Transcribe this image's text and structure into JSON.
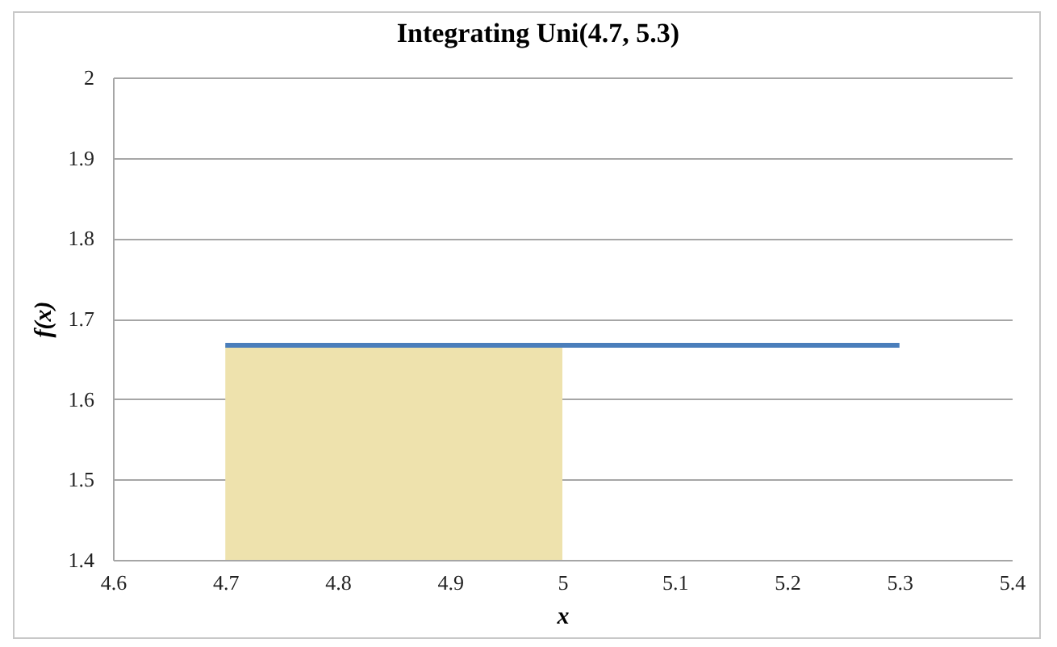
{
  "chart_data": {
    "type": "line",
    "title": "Integrating Uni(4.7, 5.3)",
    "xlabel": "x",
    "ylabel": "f(x)",
    "series": [
      {
        "type": "area",
        "color": "#eee2ad",
        "x": [
          4.7,
          5
        ],
        "values": [
          1.667,
          1.667
        ]
      },
      {
        "type": "line",
        "color": "#4a7ebb",
        "x": [
          4.7,
          5.3
        ],
        "values": [
          1.667,
          1.667
        ]
      }
    ],
    "xlim": [
      4.6,
      5.4
    ],
    "xticks": [
      4.6,
      4.7,
      4.8,
      4.9,
      5,
      5.1,
      5.2,
      5.3,
      5.4
    ],
    "ylim": [
      1.4,
      2
    ],
    "yticks": [
      1.4,
      1.5,
      1.6,
      1.7,
      1.8,
      1.9,
      2
    ],
    "grid": "y"
  }
}
